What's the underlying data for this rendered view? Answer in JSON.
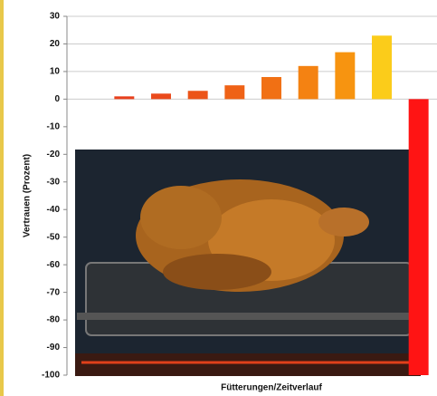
{
  "chart_data": {
    "type": "bar",
    "y_label": "Vertrauen (Prozent)",
    "x_label": "Fütterungen/Zeitverlauf",
    "categories": [
      null,
      null,
      null,
      null,
      null,
      null,
      null,
      null,
      null
    ],
    "values": [
      1,
      2,
      3,
      5,
      8,
      12,
      17,
      23,
      -100
    ],
    "colors": [
      "#e8401c",
      "#ea4a1c",
      "#ec5418",
      "#ef6216",
      "#f17014",
      "#f48212",
      "#f79410",
      "#fbcc1a",
      "#ff1414"
    ],
    "ylim": [
      -100,
      30
    ],
    "yticks": [
      30,
      20,
      10,
      0,
      -10,
      -20,
      -30,
      -40,
      -50,
      -60,
      -70,
      -80,
      -90,
      -100
    ],
    "grid": true
  }
}
